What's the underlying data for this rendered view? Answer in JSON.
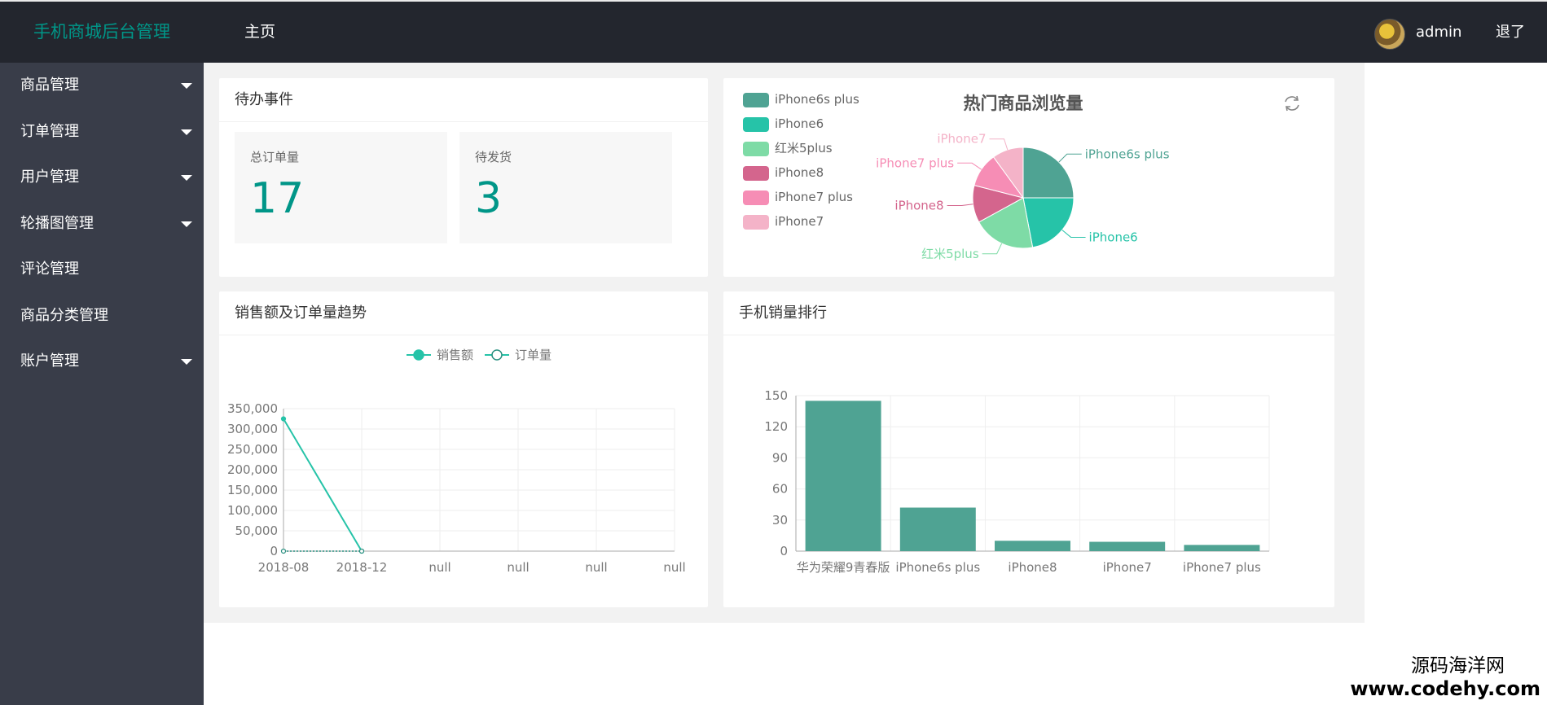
{
  "header": {
    "logo": "手机商城后台管理",
    "home": "主页",
    "user": "admin",
    "logout": "退了"
  },
  "sidebar": {
    "items": [
      {
        "label": "商品管理",
        "has_caret": true
      },
      {
        "label": "订单管理",
        "has_caret": true
      },
      {
        "label": "用户管理",
        "has_caret": true
      },
      {
        "label": "轮播图管理",
        "has_caret": true
      },
      {
        "label": "评论管理",
        "has_caret": false
      },
      {
        "label": "商品分类管理",
        "has_caret": false
      },
      {
        "label": "账户管理",
        "has_caret": true
      }
    ]
  },
  "todo": {
    "title": "待办事件",
    "stats": [
      {
        "label": "总订单量",
        "value": "17"
      },
      {
        "label": "待发货",
        "value": "3"
      }
    ]
  },
  "pie": {
    "title": "热门商品浏览量",
    "refresh_icon": "refresh-icon"
  },
  "trend": {
    "title": "销售额及订单量趋势"
  },
  "ranking": {
    "title": "手机销量排行"
  },
  "colors": {
    "accent": "#009688",
    "header": "#23262e",
    "sidebar": "#393d49"
  },
  "chart_data": [
    {
      "type": "pie",
      "title": "热门商品浏览量",
      "legend_position": "top-left",
      "categories": [
        "iPhone6s plus",
        "iPhone6",
        "红米5plus",
        "iPhone8",
        "iPhone7 plus",
        "iPhone7"
      ],
      "values": [
        25,
        22,
        20,
        12,
        11,
        10
      ],
      "colors": [
        "#4fa393",
        "#26c3a8",
        "#7edba6",
        "#d4658d",
        "#f68db5",
        "#f4b3c8"
      ]
    },
    {
      "type": "line",
      "title": "",
      "legend_position": "top",
      "x": [
        "2018-08",
        "2018-12",
        "null",
        "null",
        "null",
        "null"
      ],
      "series": [
        {
          "name": "销售额",
          "values": [
            325000,
            0,
            null,
            null,
            null,
            null
          ],
          "symbol": "filled"
        },
        {
          "name": "订单量",
          "values": [
            1,
            5,
            null,
            null,
            null,
            null
          ],
          "symbol": "hollow"
        }
      ],
      "ylim": [
        0,
        350000
      ],
      "yticks": [
        "0",
        "50,000",
        "100,000",
        "150,000",
        "200,000",
        "250,000",
        "300,000",
        "350,000"
      ],
      "grid": true,
      "colors": [
        "#26c3a8",
        "#2a8f80"
      ]
    },
    {
      "type": "bar",
      "title": "",
      "categories": [
        "华为荣耀9青春版",
        "iPhone6s plus",
        "iPhone8",
        "iPhone7",
        "iPhone7 plus"
      ],
      "values": [
        145,
        42,
        10,
        9,
        6
      ],
      "ylim": [
        0,
        150
      ],
      "yticks": [
        "0",
        "30",
        "60",
        "90",
        "120",
        "150"
      ],
      "grid": true,
      "color": "#4fa393"
    }
  ],
  "watermark": {
    "line1": "源码海洋网",
    "line2": "www.codehy.com"
  }
}
